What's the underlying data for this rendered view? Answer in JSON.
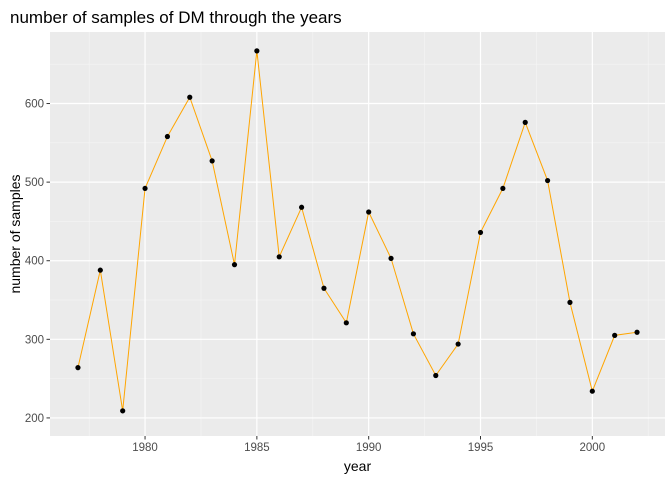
{
  "chart_data": {
    "type": "line",
    "title": "number of samples of DM through the years",
    "xlabel": "year",
    "ylabel": "number of samples",
    "xlim": [
      1975.75,
      2003.25
    ],
    "ylim": [
      177,
      691
    ],
    "x_ticks": [
      1980,
      1985,
      1990,
      1995,
      2000
    ],
    "x_minor_ticks": [
      1977.5,
      1982.5,
      1987.5,
      1992.5,
      1997.5,
      2002.5
    ],
    "y_ticks": [
      200,
      300,
      400,
      500,
      600
    ],
    "y_minor_ticks": [
      250,
      350,
      450,
      550,
      650
    ],
    "grid": true,
    "legend": "none",
    "colors": {
      "panel_background": "#ebebeb",
      "grid_major": "#ffffff",
      "grid_minor": "#f5f5f5",
      "line": "#ffa500",
      "point": "#000000",
      "tick_label": "#4d4d4d",
      "tick_mark": "#333333"
    },
    "series": [
      {
        "x": [
          1977,
          1978,
          1979,
          1980,
          1981,
          1982,
          1983,
          1984,
          1985,
          1986,
          1987,
          1988,
          1989,
          1990,
          1991,
          1992,
          1993,
          1994,
          1995,
          1996,
          1997,
          1998,
          1999,
          2000,
          2001,
          2002
        ],
        "y": [
          264,
          388,
          209,
          492,
          558,
          608,
          527,
          395,
          667,
          405,
          468,
          365,
          321,
          462,
          403,
          307,
          254,
          294,
          436,
          492,
          576,
          502,
          347,
          234,
          305,
          309
        ]
      }
    ]
  }
}
